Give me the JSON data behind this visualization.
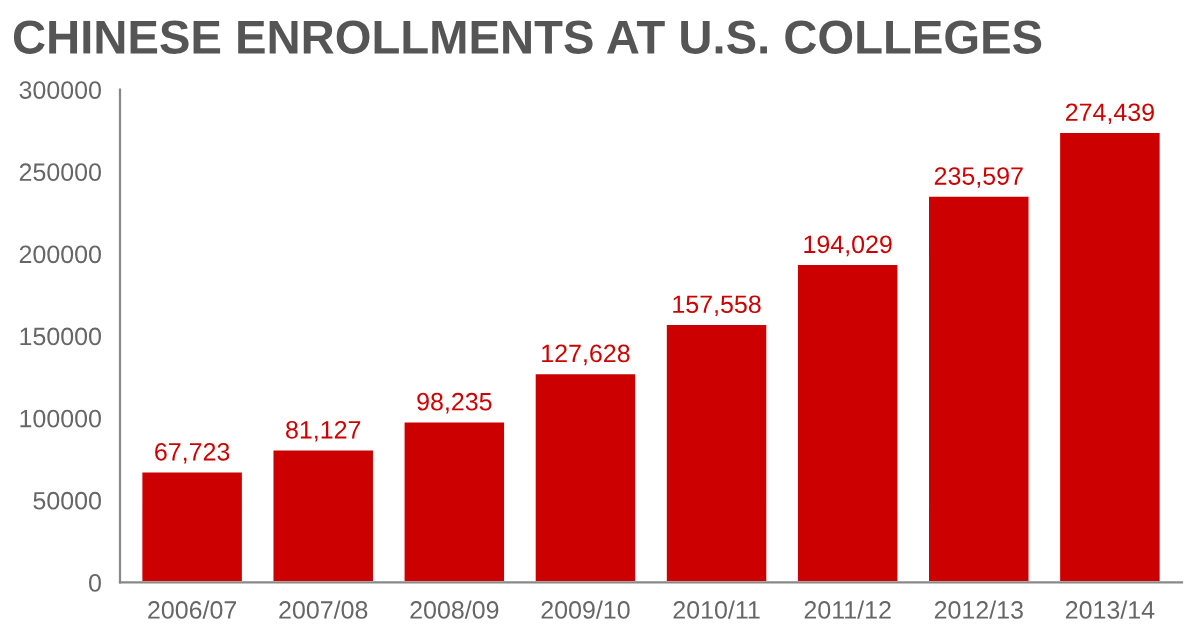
{
  "chart_data": {
    "type": "bar",
    "title": "CHINESE ENROLLMENTS AT U.S. COLLEGES",
    "categories": [
      "2006/07",
      "2007/08",
      "2008/09",
      "2009/10",
      "2010/11",
      "2011/12",
      "2012/13",
      "2013/14"
    ],
    "values": [
      67723,
      81127,
      98235,
      127628,
      157558,
      194029,
      235597,
      274439
    ],
    "value_labels": [
      "67,723",
      "81,127",
      "98,235",
      "127,628",
      "157,558",
      "194,029",
      "235,597",
      "274,439"
    ],
    "color": "#cc0000",
    "ylim": [
      0,
      300000
    ],
    "yticks": [
      0,
      50000,
      100000,
      150000,
      200000,
      250000,
      300000
    ],
    "grid": false
  }
}
